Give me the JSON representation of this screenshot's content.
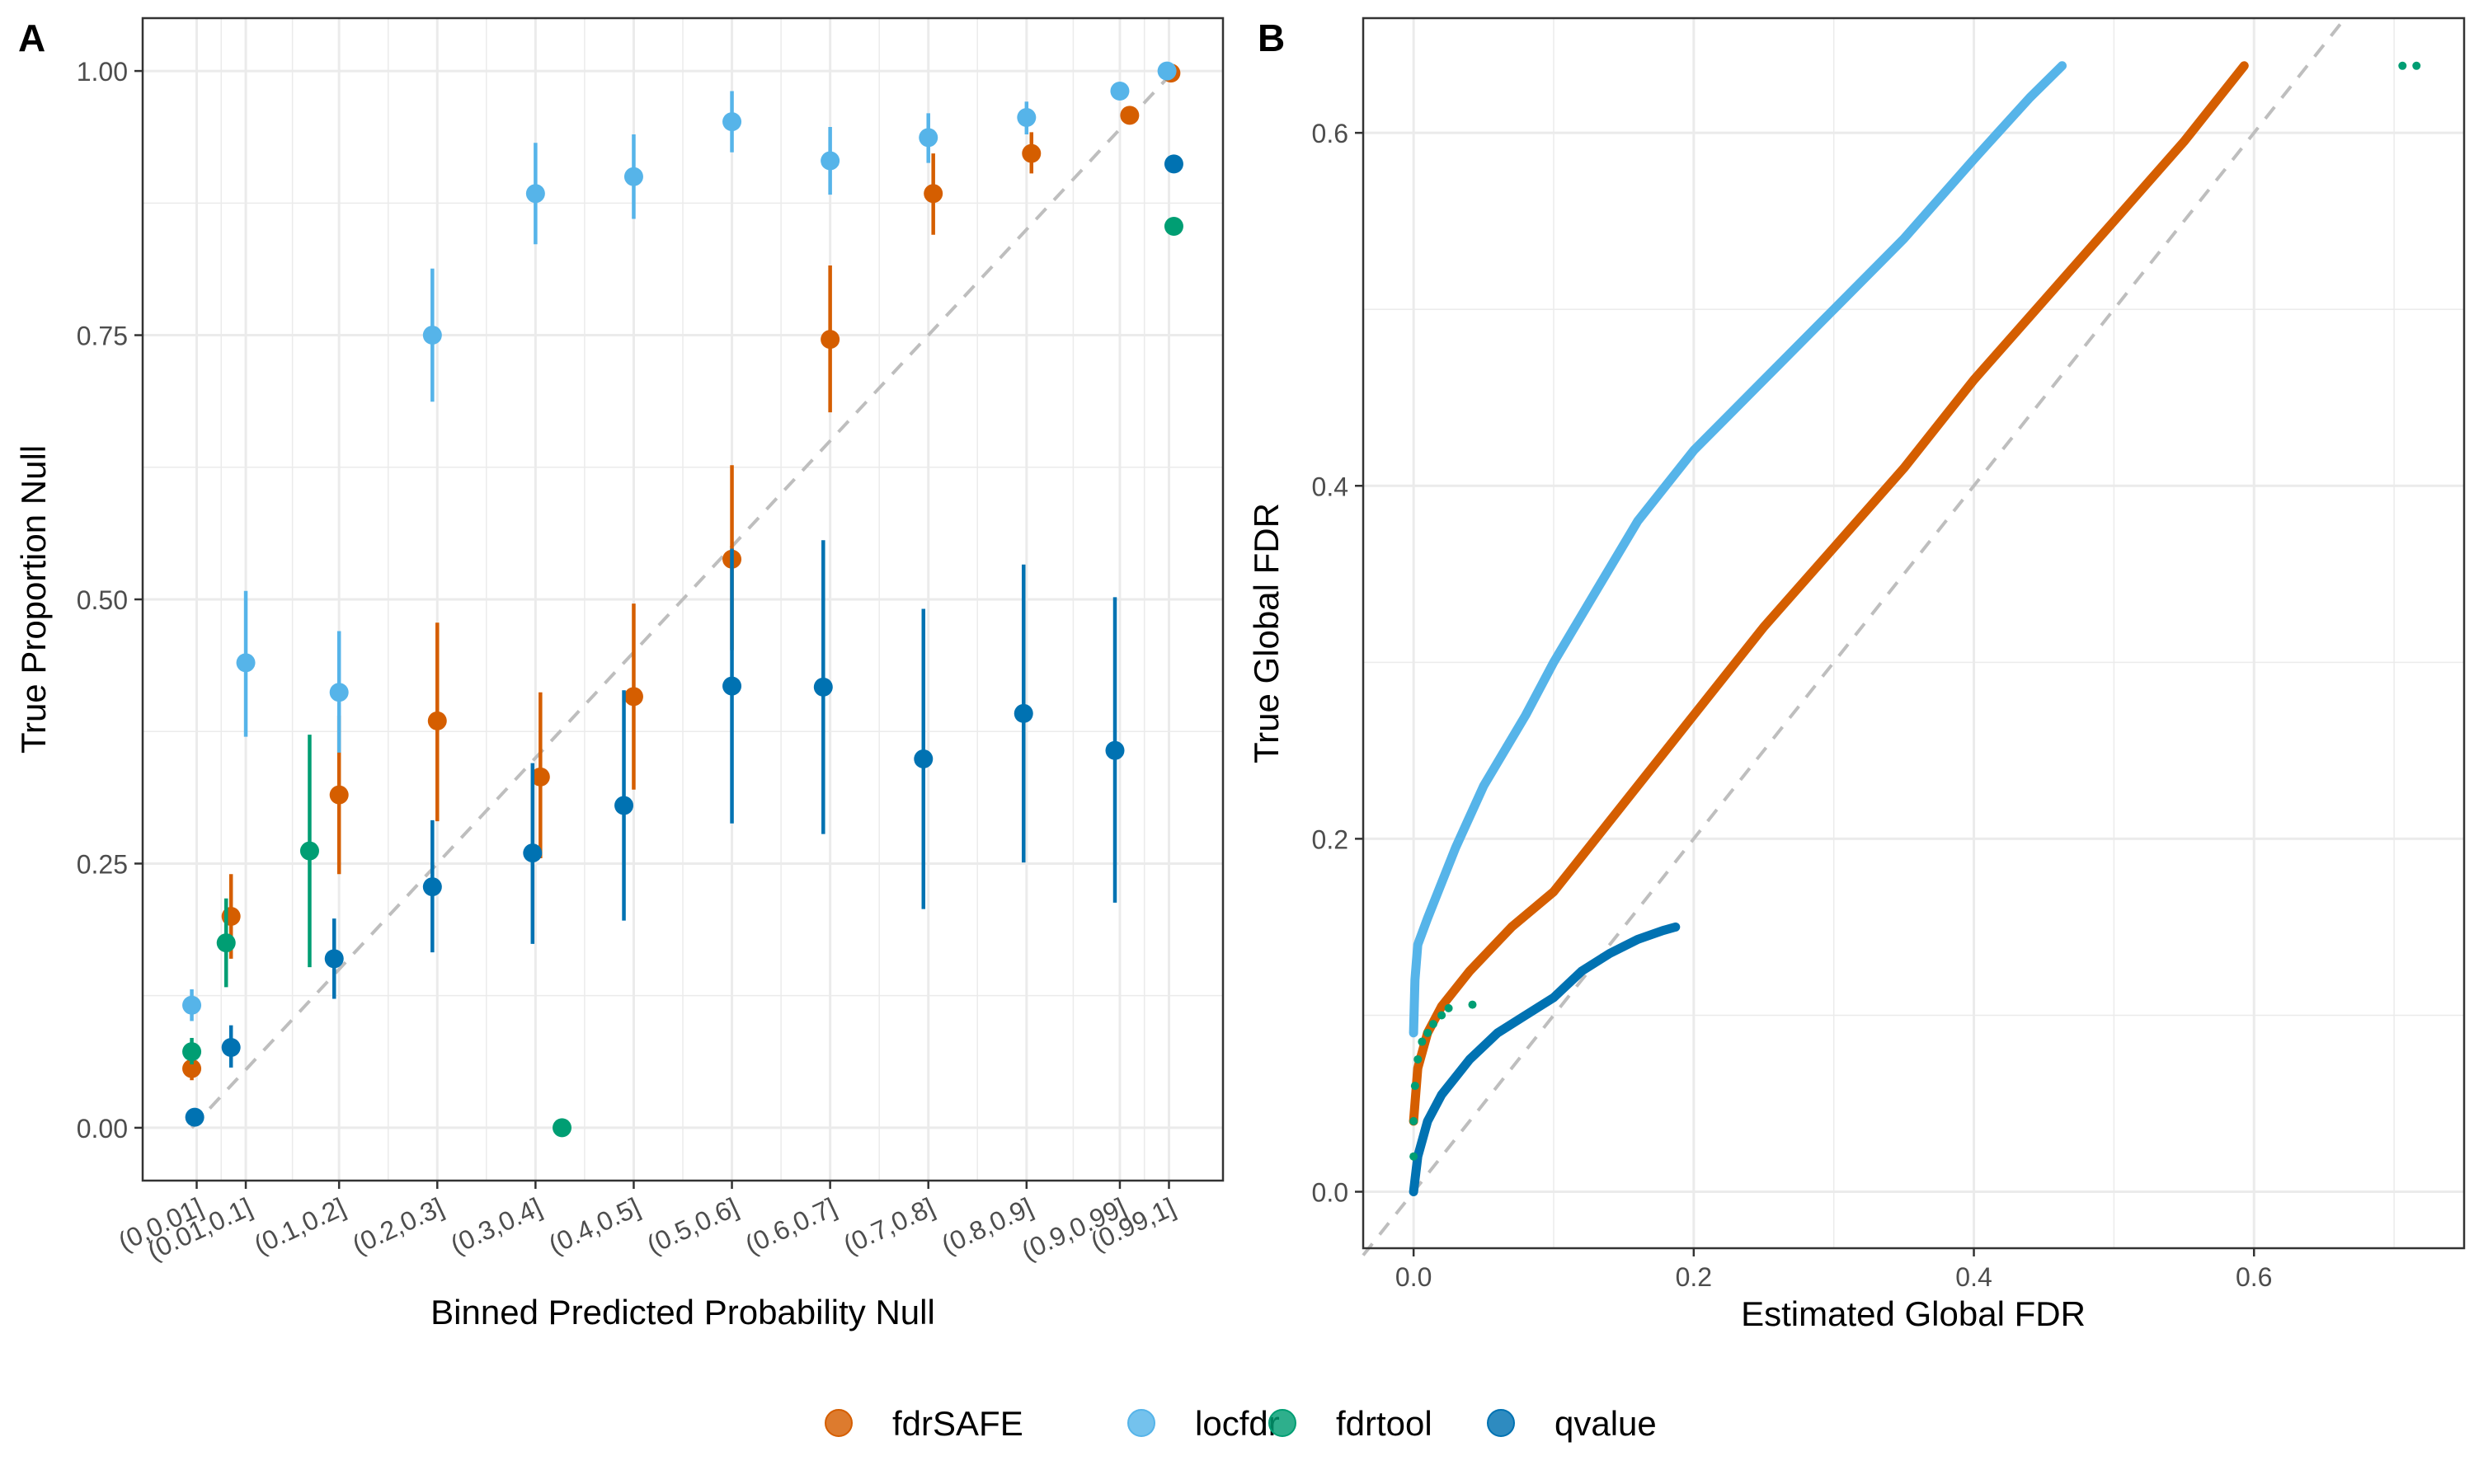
{
  "panels": {
    "a_label": "A",
    "b_label": "B"
  },
  "legend": {
    "items": [
      {
        "label": "fdrSAFE",
        "color": "#D55E00"
      },
      {
        "label": "locfdr",
        "color": "#56B4E9"
      },
      {
        "label": "fdrtool",
        "color": "#009E73"
      },
      {
        "label": "qvalue",
        "color": "#0072B2"
      }
    ]
  },
  "chart_data": [
    {
      "type": "scatter",
      "panel": "A",
      "xlabel": "Binned Predicted Probability Null",
      "ylabel": "True Proportion Null",
      "categories": [
        "(0,0.01]",
        "(0.01,0.1]",
        "(0.1,0.2]",
        "(0.2,0.3]",
        "(0.3,0.4]",
        "(0.4,0.5]",
        "(0.5,0.6]",
        "(0.6,0.7]",
        "(0.7,0.8]",
        "(0.8,0.9]",
        "(0.9,0.99]",
        "(0.99,1]"
      ],
      "category_centers": [
        0.005,
        0.055,
        0.15,
        0.25,
        0.35,
        0.45,
        0.55,
        0.65,
        0.75,
        0.85,
        0.945,
        0.995
      ],
      "xlim": [
        -0.05,
        1.05
      ],
      "ylim": [
        -0.05,
        1.05
      ],
      "yticks": [
        0,
        0.25,
        0.5,
        0.75,
        1.0
      ],
      "ytick_labels": [
        "0.00",
        "0.25",
        "0.50",
        "0.75",
        "1.00"
      ],
      "reference_line": "y = x (dashed)",
      "grid": true,
      "series": [
        {
          "name": "fdrSAFE",
          "color": "#D55E00",
          "points": [
            {
              "x": 0.0,
              "y": 0.056,
              "lo": 0.045,
              "hi": 0.068
            },
            {
              "x": 0.04,
              "y": 0.2,
              "lo": 0.16,
              "hi": 0.24
            },
            {
              "x": 0.15,
              "y": 0.315,
              "lo": 0.24,
              "hi": 0.39
            },
            {
              "x": 0.25,
              "y": 0.385,
              "lo": 0.29,
              "hi": 0.478
            },
            {
              "x": 0.355,
              "y": 0.332,
              "lo": 0.255,
              "hi": 0.412
            },
            {
              "x": 0.45,
              "y": 0.408,
              "lo": 0.32,
              "hi": 0.496
            },
            {
              "x": 0.55,
              "y": 0.538,
              "lo": 0.452,
              "hi": 0.627
            },
            {
              "x": 0.65,
              "y": 0.746,
              "lo": 0.677,
              "hi": 0.816
            },
            {
              "x": 0.755,
              "y": 0.884,
              "lo": 0.845,
              "hi": 0.922
            },
            {
              "x": 0.855,
              "y": 0.922,
              "lo": 0.903,
              "hi": 0.942
            },
            {
              "x": 0.955,
              "y": 0.958,
              "lo": 0.955,
              "hi": 0.962
            },
            {
              "x": 0.997,
              "y": 0.998,
              "lo": 0.996,
              "hi": 1.0
            }
          ]
        },
        {
          "name": "locfdr",
          "color": "#56B4E9",
          "points": [
            {
              "x": 0.0,
              "y": 0.116,
              "lo": 0.101,
              "hi": 0.131
            },
            {
              "x": 0.055,
              "y": 0.44,
              "lo": 0.37,
              "hi": 0.508
            },
            {
              "x": 0.15,
              "y": 0.412,
              "lo": 0.355,
              "hi": 0.47
            },
            {
              "x": 0.245,
              "y": 0.75,
              "lo": 0.687,
              "hi": 0.813
            },
            {
              "x": 0.35,
              "y": 0.884,
              "lo": 0.836,
              "hi": 0.932
            },
            {
              "x": 0.45,
              "y": 0.9,
              "lo": 0.86,
              "hi": 0.94
            },
            {
              "x": 0.55,
              "y": 0.952,
              "lo": 0.923,
              "hi": 0.981
            },
            {
              "x": 0.65,
              "y": 0.915,
              "lo": 0.883,
              "hi": 0.947
            },
            {
              "x": 0.75,
              "y": 0.937,
              "lo": 0.913,
              "hi": 0.96
            },
            {
              "x": 0.85,
              "y": 0.956,
              "lo": 0.94,
              "hi": 0.971
            },
            {
              "x": 0.945,
              "y": 0.981,
              "lo": 0.976,
              "hi": 0.986
            },
            {
              "x": 0.993,
              "y": 1.0,
              "lo": 0.999,
              "hi": 1.0
            }
          ]
        },
        {
          "name": "fdrtool",
          "color": "#009E73",
          "points": [
            {
              "x": 0.0,
              "y": 0.072,
              "lo": 0.06,
              "hi": 0.085
            },
            {
              "x": 0.035,
              "y": 0.175,
              "lo": 0.133,
              "hi": 0.217
            },
            {
              "x": 0.12,
              "y": 0.262,
              "lo": 0.152,
              "hi": 0.372
            },
            {
              "x": 0.377,
              "y": 0.0,
              "lo": 0.0,
              "hi": 0.0
            },
            {
              "x": 1.0,
              "y": 0.853,
              "lo": 0.846,
              "hi": 0.861
            }
          ]
        },
        {
          "name": "qvalue",
          "color": "#0072B2",
          "points": [
            {
              "x": 0.003,
              "y": 0.01,
              "lo": 0.006,
              "hi": 0.014
            },
            {
              "x": 0.04,
              "y": 0.076,
              "lo": 0.057,
              "hi": 0.097
            },
            {
              "x": 0.145,
              "y": 0.16,
              "lo": 0.122,
              "hi": 0.198
            },
            {
              "x": 0.245,
              "y": 0.228,
              "lo": 0.166,
              "hi": 0.291
            },
            {
              "x": 0.347,
              "y": 0.26,
              "lo": 0.174,
              "hi": 0.345
            },
            {
              "x": 0.44,
              "y": 0.305,
              "lo": 0.196,
              "hi": 0.414
            },
            {
              "x": 0.55,
              "y": 0.418,
              "lo": 0.288,
              "hi": 0.548
            },
            {
              "x": 0.643,
              "y": 0.417,
              "lo": 0.278,
              "hi": 0.556
            },
            {
              "x": 0.745,
              "y": 0.349,
              "lo": 0.207,
              "hi": 0.491
            },
            {
              "x": 0.847,
              "y": 0.392,
              "lo": 0.251,
              "hi": 0.533
            },
            {
              "x": 0.94,
              "y": 0.357,
              "lo": 0.213,
              "hi": 0.502
            },
            {
              "x": 1.0,
              "y": 0.912,
              "lo": 0.908,
              "hi": 0.916
            }
          ]
        }
      ]
    },
    {
      "type": "line",
      "panel": "B",
      "xlabel": "Estimated Global FDR",
      "ylabel": "True Global FDR",
      "xlim": [
        -0.036,
        0.75
      ],
      "ylim": [
        -0.032,
        0.665
      ],
      "xticks": [
        0.0,
        0.2,
        0.4,
        0.6
      ],
      "xtick_labels": [
        "0.0",
        "0.2",
        "0.4",
        "0.6"
      ],
      "yticks": [
        0.0,
        0.2,
        0.4,
        0.6
      ],
      "ytick_labels": [
        "0.0",
        "0.2",
        "0.4",
        "0.6"
      ],
      "reference_line": "y = x (dashed)",
      "grid": true,
      "series": [
        {
          "name": "locfdr",
          "color": "#56B4E9",
          "points": [
            [
              0,
              0.09
            ],
            [
              0.001,
              0.12
            ],
            [
              0.003,
              0.14
            ],
            [
              0.01,
              0.155
            ],
            [
              0.02,
              0.175
            ],
            [
              0.03,
              0.195
            ],
            [
              0.05,
              0.23
            ],
            [
              0.08,
              0.27
            ],
            [
              0.1,
              0.3
            ],
            [
              0.13,
              0.34
            ],
            [
              0.16,
              0.38
            ],
            [
              0.2,
              0.42
            ],
            [
              0.25,
              0.46
            ],
            [
              0.3,
              0.5
            ],
            [
              0.35,
              0.54
            ],
            [
              0.4,
              0.585
            ],
            [
              0.44,
              0.62
            ],
            [
              0.463,
              0.638
            ]
          ]
        },
        {
          "name": "fdrSAFE",
          "color": "#D55E00",
          "points": [
            [
              0,
              0.04
            ],
            [
              0.003,
              0.07
            ],
            [
              0.01,
              0.09
            ],
            [
              0.02,
              0.105
            ],
            [
              0.04,
              0.125
            ],
            [
              0.07,
              0.15
            ],
            [
              0.1,
              0.17
            ],
            [
              0.12,
              0.19
            ],
            [
              0.15,
              0.22
            ],
            [
              0.2,
              0.27
            ],
            [
              0.25,
              0.32
            ],
            [
              0.3,
              0.365
            ],
            [
              0.35,
              0.41
            ],
            [
              0.4,
              0.46
            ],
            [
              0.45,
              0.505
            ],
            [
              0.5,
              0.55
            ],
            [
              0.55,
              0.595
            ],
            [
              0.593,
              0.638
            ]
          ]
        },
        {
          "name": "qvalue",
          "color": "#0072B2",
          "points": [
            [
              0,
              0.0
            ],
            [
              0.003,
              0.02
            ],
            [
              0.01,
              0.04
            ],
            [
              0.02,
              0.055
            ],
            [
              0.04,
              0.075
            ],
            [
              0.06,
              0.09
            ],
            [
              0.08,
              0.1
            ],
            [
              0.1,
              0.11
            ],
            [
              0.12,
              0.125
            ],
            [
              0.14,
              0.135
            ],
            [
              0.16,
              0.143
            ],
            [
              0.178,
              0.148
            ],
            [
              0.187,
              0.15
            ]
          ]
        },
        {
          "name": "fdrtool",
          "color": "#009E73",
          "points": [
            [
              0,
              0.02
            ],
            [
              0,
              0.04
            ],
            [
              0.001,
              0.06
            ],
            [
              0.003,
              0.075
            ],
            [
              0.006,
              0.085
            ],
            [
              0.01,
              0.09
            ],
            [
              0.014,
              0.095
            ],
            [
              0.02,
              0.1
            ],
            [
              0.025,
              0.104
            ],
            [
              0.042,
              0.106
            ],
            [
              0.706,
              0.638
            ],
            [
              0.716,
              0.638
            ]
          ],
          "style": "points"
        }
      ]
    }
  ]
}
